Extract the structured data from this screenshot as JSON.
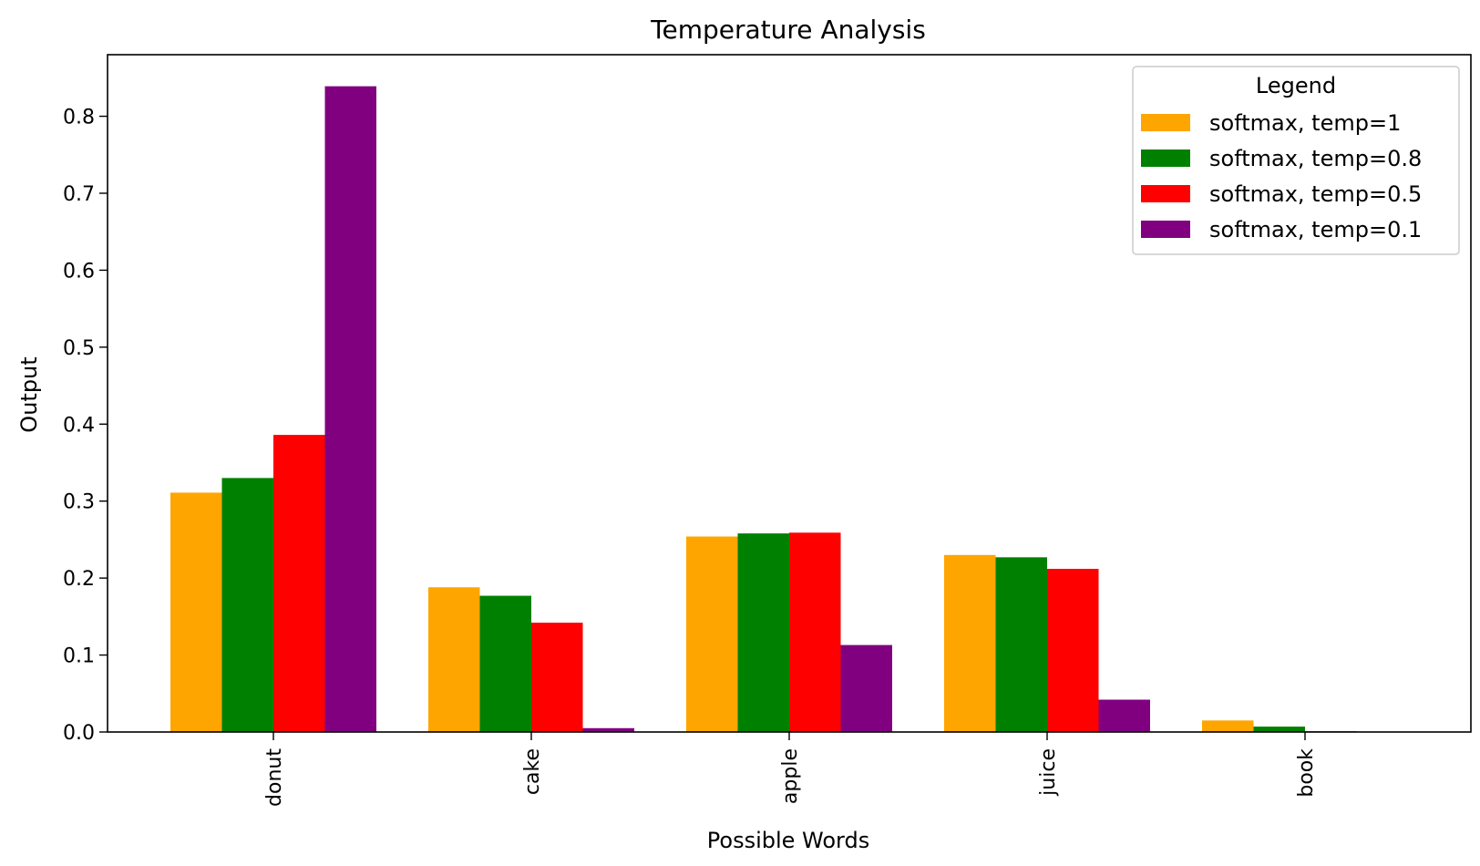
{
  "chart_data": {
    "type": "bar",
    "title": "Temperature Analysis",
    "xlabel": "Possible Words",
    "ylabel": "Output",
    "categories": [
      "donut",
      "cake",
      "apple",
      "juice",
      "book"
    ],
    "series": [
      {
        "name": "softmax, temp=1",
        "color": "#FFA500",
        "values": [
          0.311,
          0.188,
          0.254,
          0.23,
          0.015
        ]
      },
      {
        "name": "softmax, temp=0.8",
        "color": "#008000",
        "values": [
          0.33,
          0.177,
          0.258,
          0.227,
          0.007
        ]
      },
      {
        "name": "softmax, temp=0.5",
        "color": "#FF0000",
        "values": [
          0.386,
          0.142,
          0.259,
          0.212,
          0.001
        ]
      },
      {
        "name": "softmax, temp=0.1",
        "color": "#800080",
        "values": [
          0.839,
          0.005,
          0.113,
          0.042,
          0.0
        ]
      }
    ],
    "ylim": [
      0,
      0.88
    ],
    "yticks": [
      "0.0",
      "0.1",
      "0.2",
      "0.3",
      "0.4",
      "0.5",
      "0.6",
      "0.7",
      "0.8"
    ],
    "grid": false,
    "legend": {
      "title": "Legend",
      "placement": "top-right"
    }
  }
}
